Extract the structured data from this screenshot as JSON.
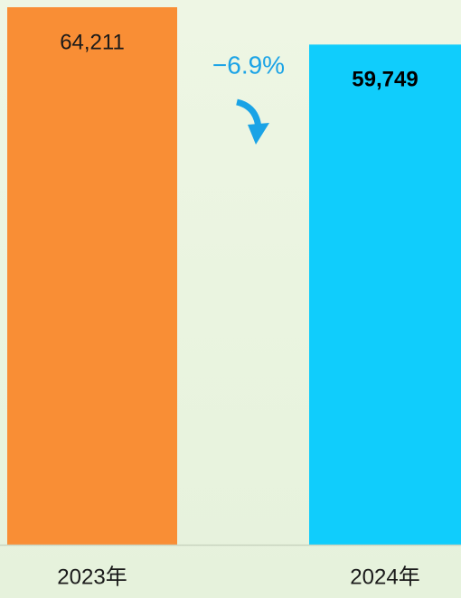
{
  "chart_data": {
    "type": "bar",
    "categories": [
      "2023年",
      "2024年"
    ],
    "values": [
      64211,
      59749
    ],
    "value_labels": [
      "64,211",
      "59,749"
    ],
    "colors": [
      "#f98e35",
      "#10cdfc"
    ],
    "annotation": "−6.9%"
  }
}
